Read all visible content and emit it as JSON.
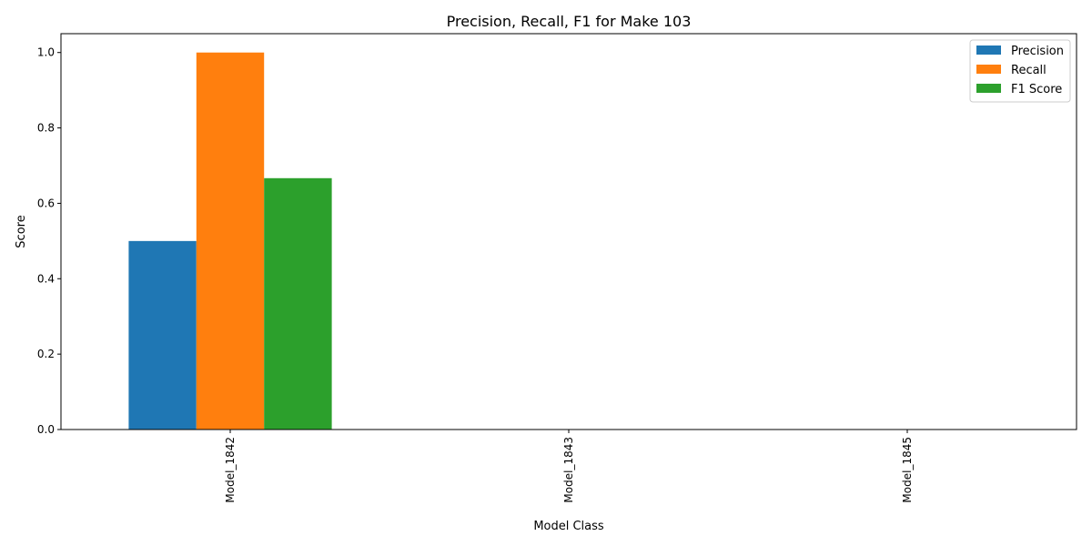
{
  "chart_data": {
    "type": "bar",
    "title": "Precision, Recall, F1 for Make 103",
    "xlabel": "Model Class",
    "ylabel": "Score",
    "categories": [
      "Model_1842",
      "Model_1843",
      "Model_1845"
    ],
    "series": [
      {
        "name": "Precision",
        "color": "#1f77b4",
        "values": [
          0.5,
          0.0,
          0.0
        ]
      },
      {
        "name": "Recall",
        "color": "#ff7f0e",
        "values": [
          1.0,
          0.0,
          0.0
        ]
      },
      {
        "name": "F1 Score",
        "color": "#2ca02c",
        "values": [
          0.6667,
          0.0,
          0.0
        ]
      }
    ],
    "ylim": [
      0,
      1.05
    ],
    "yticks": [
      "0.0",
      "0.2",
      "0.4",
      "0.6",
      "0.8",
      "1.0"
    ],
    "grid": false,
    "legend_position": "top-right"
  }
}
